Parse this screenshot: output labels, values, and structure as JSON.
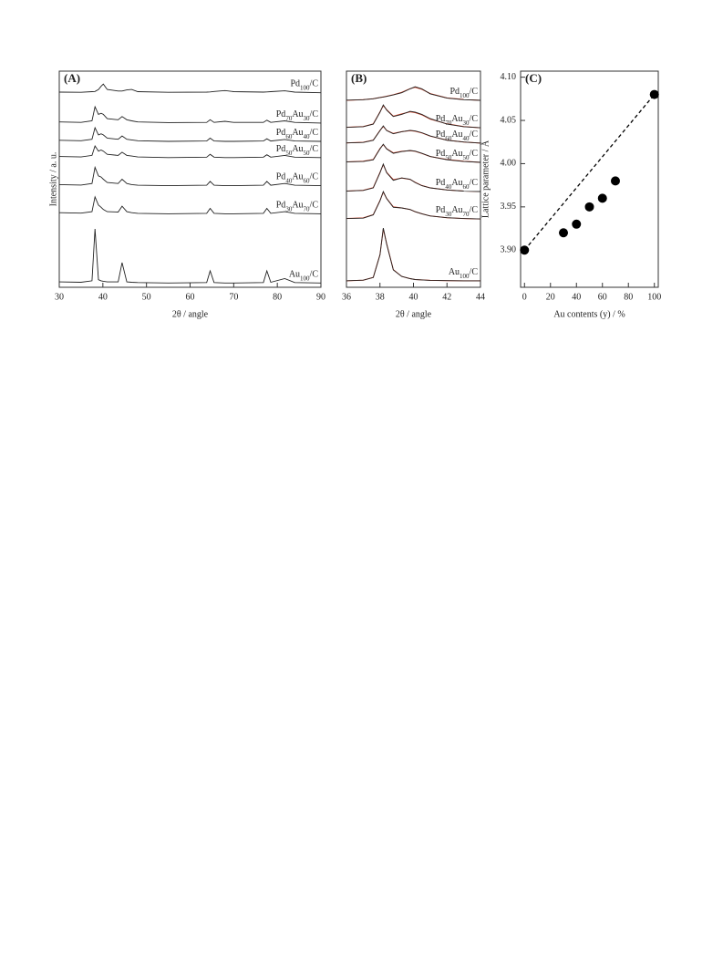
{
  "chart_data": [
    {
      "type": "line",
      "title": "(A)",
      "xlabel": "2θ / angle",
      "ylabel": "Intensity / a. u.",
      "xlim": [
        30,
        90
      ],
      "xticks": [
        30,
        40,
        50,
        60,
        70,
        80,
        90
      ],
      "ylim": [
        0,
        100
      ],
      "x": [
        30,
        35,
        37.5,
        38.2,
        39,
        39.6,
        40.1,
        41,
        43.5,
        44.4,
        45.5,
        46.6,
        48,
        55,
        63.8,
        64.6,
        65.5,
        68,
        70,
        76.8,
        77.6,
        78.5,
        81.7,
        84,
        90
      ],
      "series": [
        {
          "name": "Pd100/C",
          "color": "#222222",
          "values": [
            90.3,
            90.2,
            90.5,
            90.6,
            91.5,
            93,
            94,
            91.5,
            90.8,
            90.8,
            91.3,
            91.5,
            90.5,
            90.2,
            90.3,
            90.4,
            90.6,
            91,
            90.5,
            90.3,
            90.4,
            90.5,
            90.9,
            90.3,
            90
          ]
        },
        {
          "name": "Pd70Au30/C",
          "color": "#222222",
          "values": [
            76.5,
            76.3,
            77,
            83.5,
            80,
            80.5,
            80,
            78,
            77.5,
            79,
            77.5,
            77,
            76.5,
            76.2,
            76.3,
            77.5,
            76.3,
            76.8,
            76.3,
            76.3,
            77.3,
            76.3,
            77,
            76.3,
            76
          ]
        },
        {
          "name": "Pd60Au40/C",
          "color": "#222222",
          "values": [
            68,
            67.8,
            68.5,
            73.8,
            70.5,
            71,
            70.5,
            69,
            68.5,
            70,
            68.5,
            68.2,
            67.8,
            67.5,
            67.7,
            69,
            67.7,
            67.5,
            67.5,
            67.7,
            68.7,
            67.7,
            68.4,
            67.7,
            67.5
          ]
        },
        {
          "name": "Pd50Au50/C",
          "color": "#222222",
          "values": [
            60.5,
            60.3,
            61,
            65.4,
            63,
            63.5,
            63,
            61.5,
            61,
            62.5,
            61,
            60.7,
            60.3,
            60,
            60.2,
            61.5,
            60.2,
            60,
            60,
            60.2,
            61.3,
            60.2,
            61,
            60.2,
            60
          ]
        },
        {
          "name": "Pd40Au60/C",
          "color": "#222222",
          "values": [
            47.5,
            47.3,
            48,
            55.5,
            51.5,
            51,
            50,
            48.5,
            48,
            50,
            48,
            47.5,
            47.2,
            47,
            47.2,
            49,
            47.2,
            47,
            47,
            47.2,
            49,
            47.2,
            48,
            47.2,
            47
          ]
        },
        {
          "name": "Pd30Au70/C",
          "color": "#222222",
          "values": [
            34.5,
            34.3,
            35,
            41.8,
            38,
            37,
            36,
            35,
            34.8,
            37.5,
            35,
            34.5,
            34.2,
            34,
            34.2,
            36.5,
            34.2,
            34,
            34,
            34.2,
            36.5,
            34.2,
            35,
            34.2,
            34
          ]
        },
        {
          "name": "Au100/C",
          "color": "#222222",
          "values": [
            2.5,
            2.3,
            3,
            27,
            3.5,
            3,
            2.8,
            2.5,
            2.5,
            11.4,
            2.5,
            2.3,
            2.2,
            2,
            2.2,
            7.6,
            2.2,
            2,
            2,
            2.2,
            7.6,
            2.3,
            4,
            2.2,
            2
          ]
        }
      ]
    },
    {
      "type": "line",
      "title": "(B)",
      "xlabel": "2θ / angle",
      "xlim": [
        36,
        44
      ],
      "xticks": [
        36,
        38,
        40,
        42,
        44
      ],
      "ylim": [
        0,
        100
      ],
      "fit_color": "#d9452b",
      "x": [
        36,
        37,
        37.6,
        38,
        38.2,
        38.4,
        38.8,
        39.3,
        39.8,
        40.1,
        40.5,
        41,
        42,
        43,
        44
      ],
      "series": [
        {
          "name": "Pd100/C",
          "color": "#222222",
          "values": [
            86.6,
            86.8,
            87.2,
            87.8,
            88,
            88.3,
            89,
            90,
            91.8,
            92.8,
            91.8,
            89.5,
            87.5,
            86.8,
            86.5
          ],
          "fit": [
            86.5,
            86.8,
            87.2,
            87.8,
            88.1,
            88.4,
            89.1,
            90.2,
            91.9,
            92.5,
            91.6,
            89.6,
            87.6,
            86.9,
            86.5
          ]
        },
        {
          "name": "Pd70Au30/C",
          "color": "#222222",
          "values": [
            74,
            74.3,
            75.5,
            81,
            84.4,
            82,
            79,
            80,
            81.4,
            81,
            80,
            78,
            75.5,
            74.3,
            73.8
          ],
          "fit": [
            74,
            74.4,
            75.6,
            81.2,
            84,
            82.2,
            79.2,
            80.2,
            81.2,
            80.8,
            79.8,
            77.8,
            75.6,
            74.4,
            73.8
          ]
        },
        {
          "name": "Pd60Au40/C",
          "color": "#222222",
          "values": [
            66.8,
            67,
            68,
            72.5,
            74.7,
            72.5,
            71,
            72,
            72.6,
            72.3,
            71.5,
            70,
            68,
            67.2,
            66.7
          ],
          "fit": [
            66.8,
            67.1,
            68.1,
            72.6,
            74.4,
            72.6,
            71.2,
            72,
            72.5,
            72.2,
            71.4,
            69.9,
            68.1,
            67.2,
            66.7
          ]
        },
        {
          "name": "Pd50Au50/C",
          "color": "#222222",
          "values": [
            58,
            58.2,
            59,
            64,
            66.2,
            64,
            62,
            62.8,
            63.3,
            63,
            62,
            60.5,
            59,
            58.2,
            57.8
          ],
          "fit": [
            58,
            58.3,
            59.1,
            64.2,
            66,
            64.1,
            62.2,
            62.9,
            63.2,
            62.9,
            61.9,
            60.5,
            59.1,
            58.3,
            57.8
          ]
        },
        {
          "name": "Pd40Au60/C",
          "color": "#222222",
          "values": [
            44.5,
            44.8,
            46,
            53,
            57,
            53,
            49.5,
            50.6,
            50,
            48.5,
            47,
            46,
            45,
            44.5,
            44.3
          ],
          "fit": [
            44.5,
            44.9,
            46.1,
            53.2,
            56.7,
            53.2,
            49.8,
            50.5,
            49.9,
            48.6,
            47.1,
            46,
            45,
            44.5,
            44.3
          ]
        },
        {
          "name": "Pd30Au70/C",
          "color": "#222222",
          "values": [
            31.8,
            32,
            33.5,
            40,
            44.3,
            41,
            37,
            36.7,
            36,
            35,
            34,
            33,
            32.2,
            31.8,
            31.6
          ],
          "fit": [
            31.8,
            32.1,
            33.6,
            40.2,
            44,
            41.1,
            37.2,
            36.7,
            36,
            35,
            34,
            33,
            32.2,
            31.8,
            31.6
          ]
        },
        {
          "name": "Au100/C",
          "color": "#222222",
          "values": [
            3,
            3.3,
            4.5,
            15,
            27.4,
            20,
            8,
            5,
            4,
            3.6,
            3.4,
            3.2,
            3.1,
            3,
            3
          ],
          "fit": [
            3,
            3.3,
            4.6,
            15.2,
            27,
            20.2,
            8.2,
            5,
            4,
            3.6,
            3.4,
            3.2,
            3.1,
            3,
            3
          ]
        }
      ]
    },
    {
      "type": "scatter",
      "title": "(C)",
      "xlabel": "Au contents (y) / %",
      "ylabel": "Lattice parameter / Å",
      "xlim": [
        -3,
        103
      ],
      "xticks": [
        0,
        20,
        40,
        60,
        80,
        100
      ],
      "ylim": [
        3.857,
        4.107
      ],
      "yticks": [
        {
          "value": 3.9,
          "label": "3.90"
        },
        3.95,
        {
          "value": 4.0,
          "label": "4.00"
        },
        4.05,
        {
          "value": 4.1,
          "label": "4.10"
        }
      ],
      "color": "#000000",
      "x": [
        0,
        30,
        40,
        50,
        60,
        70,
        100
      ],
      "values": [
        3.9,
        3.92,
        3.93,
        3.95,
        3.96,
        3.98,
        4.08
      ],
      "reference_line": {
        "x": [
          0,
          100
        ],
        "y": [
          3.9,
          4.08
        ]
      }
    }
  ]
}
